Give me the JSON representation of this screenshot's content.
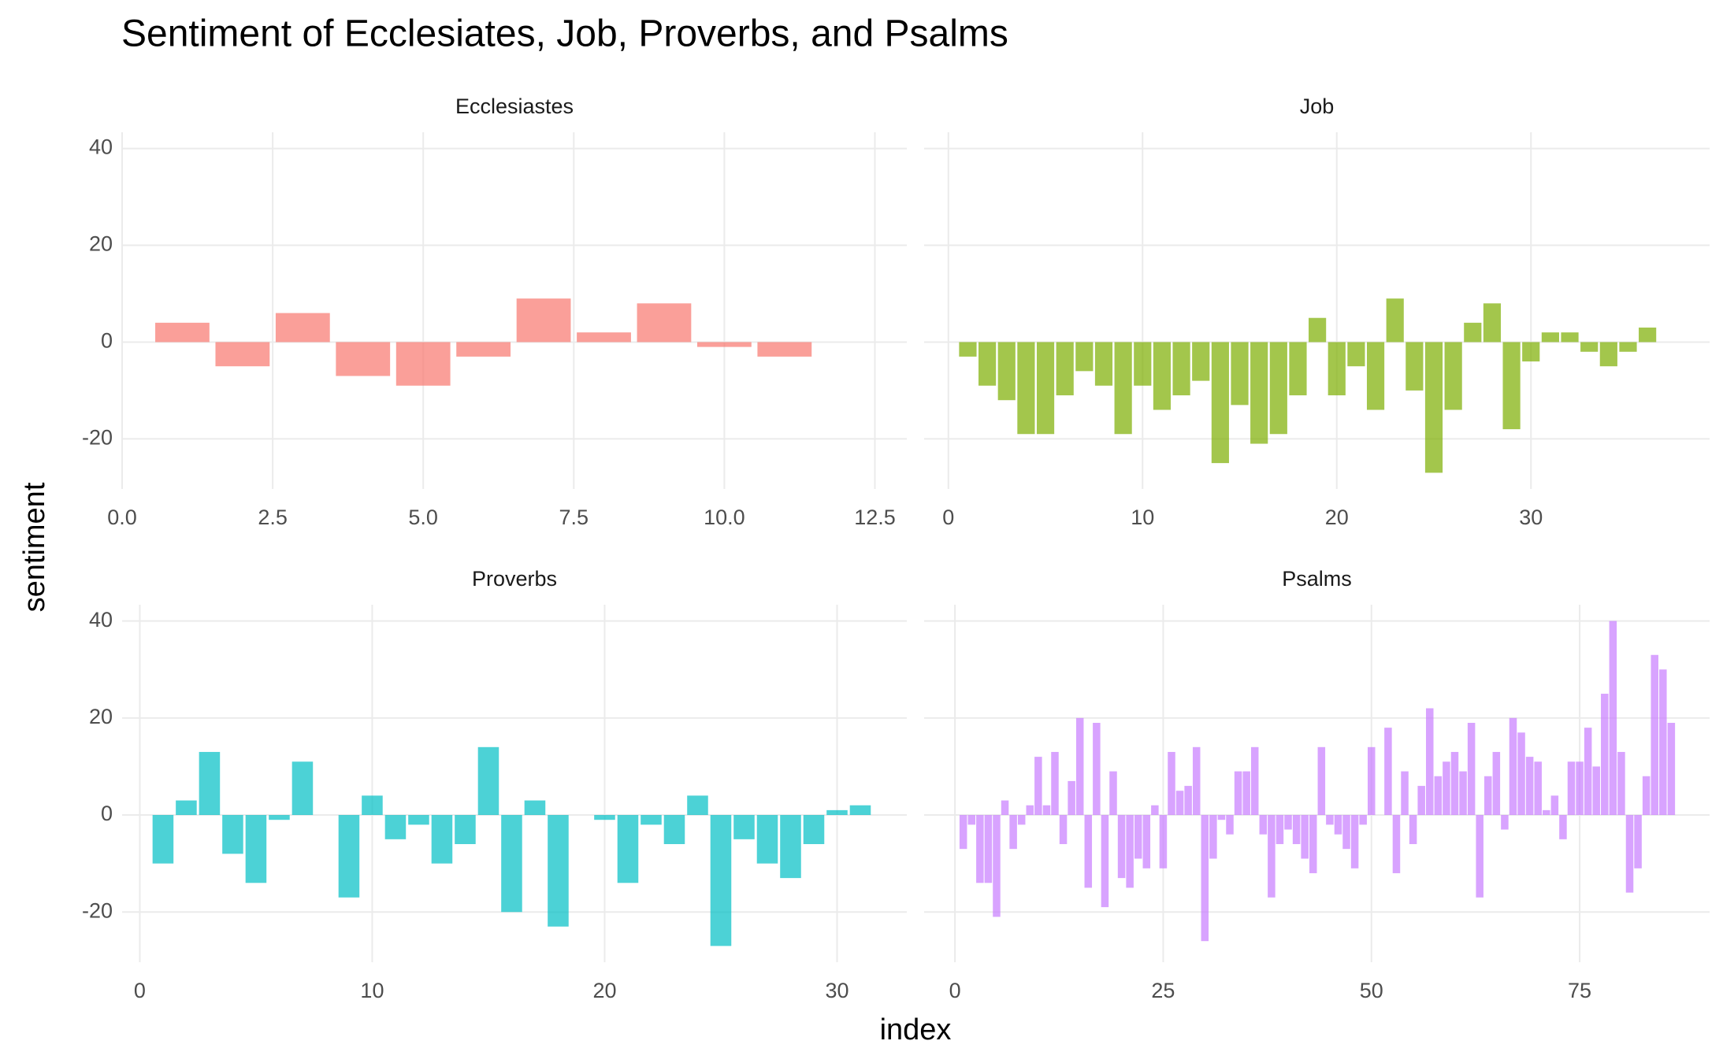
{
  "chart_data": {
    "type": "bar",
    "title": "Sentiment of Ecclesiates, Job, Proverbs, and Psalms",
    "xlabel": "index",
    "ylabel": "sentiment",
    "ylim": [
      -30.35,
      43.35
    ],
    "yticks": [
      -20,
      0,
      20,
      40
    ],
    "grid": true,
    "panels": [
      {
        "title": "Ecclesiastes",
        "color": "#F8766D",
        "xlim": [
          0,
          13.03
        ],
        "xticks": [
          {
            "value": 0,
            "label": "0.0"
          },
          2.5,
          {
            "value": 5,
            "label": "5.0"
          },
          7.5,
          {
            "value": 10,
            "label": "10.0"
          },
          12.5
        ],
        "x": [
          1,
          2,
          3,
          4,
          5,
          6,
          7,
          8,
          9,
          10,
          11
        ],
        "values": [
          4,
          -5,
          6,
          -7,
          -9,
          -3,
          9,
          2,
          8,
          -1,
          -3
        ]
      },
      {
        "title": "Job",
        "color": "#7CAE00",
        "xlim": [
          -1.25,
          39.2
        ],
        "xticks": [
          0,
          10,
          20,
          30
        ],
        "x": [
          1,
          2,
          3,
          4,
          5,
          6,
          7,
          8,
          9,
          10,
          11,
          12,
          13,
          14,
          15,
          16,
          17,
          18,
          19,
          20,
          21,
          22,
          23,
          24,
          25,
          26,
          27,
          28,
          29,
          30,
          31,
          32,
          33,
          34,
          35,
          36
        ],
        "values": [
          -3,
          -9,
          -12,
          -19,
          -19,
          -11,
          -6,
          -9,
          -19,
          -9,
          -14,
          -11,
          -8,
          -25,
          -13,
          -21,
          -19,
          -11,
          5,
          -11,
          -5,
          -14,
          9,
          -10,
          -27,
          -14,
          4,
          8,
          -18,
          -4,
          2,
          2,
          -2,
          -5,
          -2,
          3
        ]
      },
      {
        "title": "Proverbs",
        "color": "#00BFC4",
        "xlim": [
          -0.76,
          33.0
        ],
        "xticks": [
          0,
          10,
          20,
          30
        ],
        "x": [
          1,
          2,
          3,
          4,
          5,
          6,
          7,
          8,
          9,
          10,
          11,
          12,
          13,
          14,
          15,
          16,
          17,
          18,
          19,
          20,
          21,
          22,
          23,
          24,
          25,
          26,
          27,
          28,
          29,
          30,
          31
        ],
        "values": [
          -10,
          3,
          13,
          -8,
          -14,
          -1,
          11,
          0,
          -17,
          4,
          -5,
          -2,
          -10,
          -6,
          14,
          -20,
          3,
          -23,
          0,
          -1,
          -14,
          -2,
          -6,
          4,
          -27,
          -5,
          -10,
          -13,
          -6,
          1,
          2
        ]
      },
      {
        "title": "Psalms",
        "color": "#C77CFF",
        "xlim": [
          -3.7,
          90.6
        ],
        "xticks": [
          0,
          25,
          50,
          75
        ],
        "x": [
          1,
          2,
          3,
          4,
          5,
          6,
          7,
          8,
          9,
          10,
          11,
          12,
          13,
          14,
          15,
          16,
          17,
          18,
          19,
          20,
          21,
          22,
          23,
          24,
          25,
          26,
          27,
          28,
          29,
          30,
          31,
          32,
          33,
          34,
          35,
          36,
          37,
          38,
          39,
          40,
          41,
          42,
          43,
          44,
          45,
          46,
          47,
          48,
          49,
          50,
          51,
          52,
          53,
          54,
          55,
          56,
          57,
          58,
          59,
          60,
          61,
          62,
          63,
          64,
          65,
          66,
          67,
          68,
          69,
          70,
          71,
          72,
          73,
          74,
          75,
          76,
          77,
          78,
          79,
          80,
          81,
          82,
          83,
          84,
          85,
          86
        ],
        "values": [
          -7,
          -2,
          -14,
          -14,
          -21,
          3,
          -7,
          -2,
          2,
          12,
          2,
          13,
          -6,
          7,
          20,
          -15,
          19,
          -19,
          9,
          -13,
          -15,
          -9,
          -11,
          2,
          -11,
          13,
          5,
          6,
          14,
          -26,
          -9,
          -1,
          -4,
          9,
          9,
          14,
          -4,
          -17,
          -6,
          -3,
          -6,
          -9,
          -12,
          14,
          -2,
          -4,
          -7,
          -11,
          -2,
          14,
          0,
          18,
          -12,
          9,
          -6,
          6,
          22,
          8,
          11,
          13,
          9,
          19,
          -17,
          8,
          13,
          -3,
          20,
          17,
          12,
          11,
          1,
          4,
          -5,
          11,
          11,
          18,
          10,
          25,
          40,
          13,
          -16,
          -11,
          8,
          33,
          30,
          19
        ]
      }
    ]
  }
}
